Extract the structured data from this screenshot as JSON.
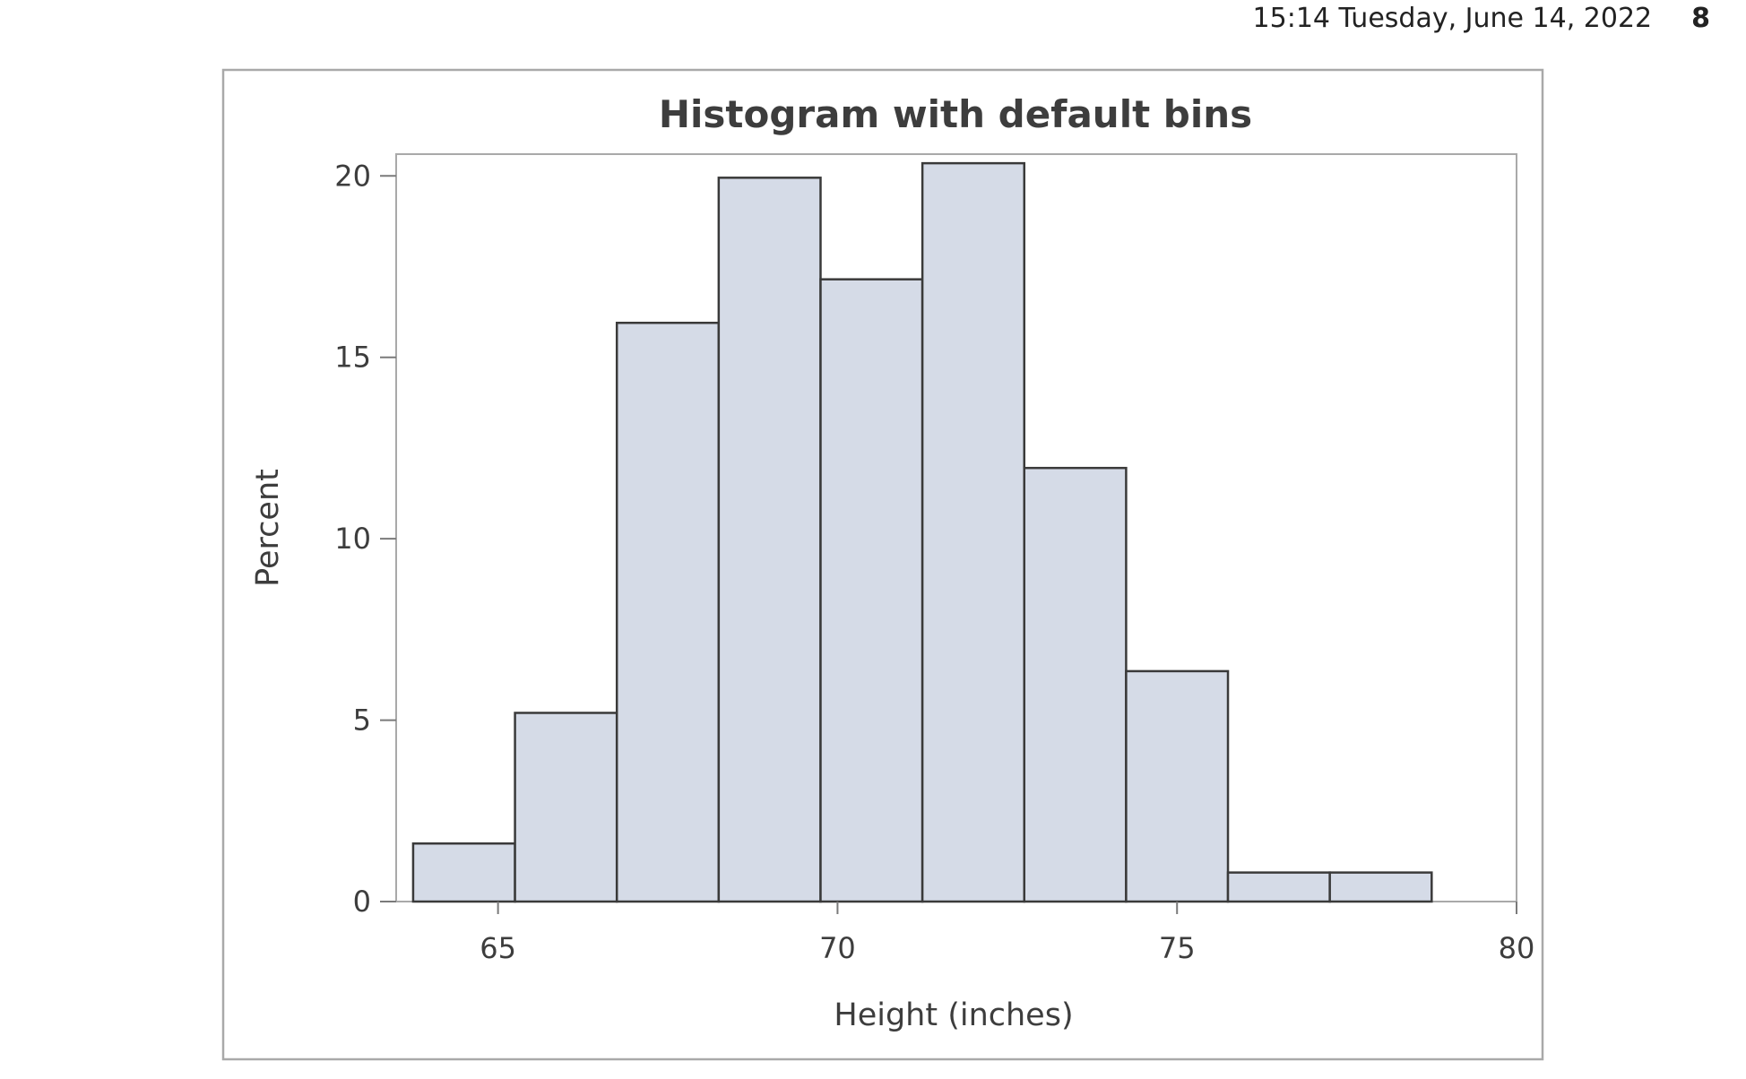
{
  "header": {
    "timestamp": "15:14 Tuesday, June 14, 2022",
    "page_number": "8"
  },
  "chart_data": {
    "type": "bar",
    "title": "Histogram with default bins",
    "xlabel": "Height (inches)",
    "ylabel": "Percent",
    "xlim": [
      63.5,
      80
    ],
    "ylim": [
      0,
      20.6
    ],
    "x_ticks": [
      65,
      70,
      75,
      80
    ],
    "y_ticks": [
      0,
      5,
      10,
      15,
      20
    ],
    "bin_width": 1.5,
    "bins": [
      {
        "start": 63.75,
        "end": 65.25,
        "value": 1.6
      },
      {
        "start": 65.25,
        "end": 66.75,
        "value": 5.2
      },
      {
        "start": 66.75,
        "end": 68.25,
        "value": 15.95
      },
      {
        "start": 68.25,
        "end": 69.75,
        "value": 19.95
      },
      {
        "start": 69.75,
        "end": 71.25,
        "value": 17.15
      },
      {
        "start": 71.25,
        "end": 72.75,
        "value": 20.35
      },
      {
        "start": 72.75,
        "end": 74.25,
        "value": 11.95
      },
      {
        "start": 74.25,
        "end": 75.75,
        "value": 6.35
      },
      {
        "start": 75.75,
        "end": 77.25,
        "value": 0.8
      },
      {
        "start": 77.25,
        "end": 78.75,
        "value": 0.8
      }
    ],
    "grid": false,
    "colors": {
      "bar_fill": "#d5dbe7",
      "bar_stroke": "#3a3a3a",
      "frame": "#a9a9a9"
    }
  }
}
